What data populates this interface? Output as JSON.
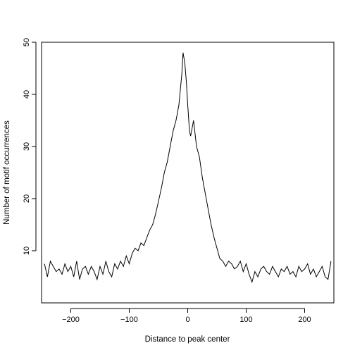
{
  "chart_data": {
    "type": "line",
    "title": "",
    "xlabel": "Distance to peak center",
    "ylabel": "Number of motif occurrences",
    "xlim": [
      -250,
      250
    ],
    "ylim": [
      0,
      50
    ],
    "x_ticks": [
      -200,
      -100,
      0,
      100,
      200
    ],
    "y_ticks": [
      10,
      20,
      30,
      40,
      50
    ],
    "grid": false,
    "series": [
      {
        "x": [
          -245,
          -240,
          -235,
          -230,
          -225,
          -220,
          -215,
          -210,
          -205,
          -200,
          -195,
          -190,
          -185,
          -180,
          -175,
          -170,
          -165,
          -160,
          -155,
          -150,
          -145,
          -140,
          -135,
          -130,
          -125,
          -120,
          -115,
          -110,
          -105,
          -100,
          -95,
          -90,
          -85,
          -80,
          -75,
          -70,
          -65,
          -60,
          -55,
          -50,
          -45,
          -40,
          -35,
          -30,
          -25,
          -20,
          -15,
          -10,
          -8,
          -5,
          -2,
          0,
          3,
          5,
          10,
          15,
          20,
          25,
          30,
          35,
          40,
          45,
          50,
          55,
          60,
          65,
          70,
          75,
          80,
          85,
          90,
          95,
          100,
          105,
          110,
          115,
          120,
          125,
          130,
          135,
          140,
          145,
          150,
          155,
          160,
          165,
          170,
          175,
          180,
          185,
          190,
          195,
          200,
          205,
          210,
          215,
          220,
          225,
          230,
          235,
          240,
          245
        ],
        "y": [
          7.5,
          5,
          8,
          7,
          6,
          6.5,
          5.5,
          7.5,
          6,
          7,
          5,
          8,
          4.5,
          6.5,
          7,
          5.5,
          7,
          6,
          4.5,
          7,
          5.5,
          8,
          6,
          5,
          7.5,
          6.5,
          8,
          7,
          9,
          7.5,
          9.5,
          10.5,
          10,
          11.5,
          11,
          12.5,
          14,
          15,
          17,
          19.5,
          22,
          25,
          27,
          30,
          33,
          35,
          38,
          44,
          48,
          46,
          42,
          38,
          33,
          32,
          35,
          30,
          28,
          24,
          21,
          18,
          15,
          12.5,
          10.5,
          8.5,
          8,
          7,
          8,
          7.5,
          6.5,
          7,
          8,
          6,
          7.5,
          5.5,
          4,
          6,
          5,
          6.5,
          7,
          6,
          5.5,
          7,
          6,
          5,
          6.5,
          6,
          7,
          5.5,
          6,
          5,
          7,
          6,
          6.5,
          7.5,
          5.5,
          6.5,
          5,
          6,
          7,
          5,
          4.5,
          8
        ]
      }
    ]
  }
}
